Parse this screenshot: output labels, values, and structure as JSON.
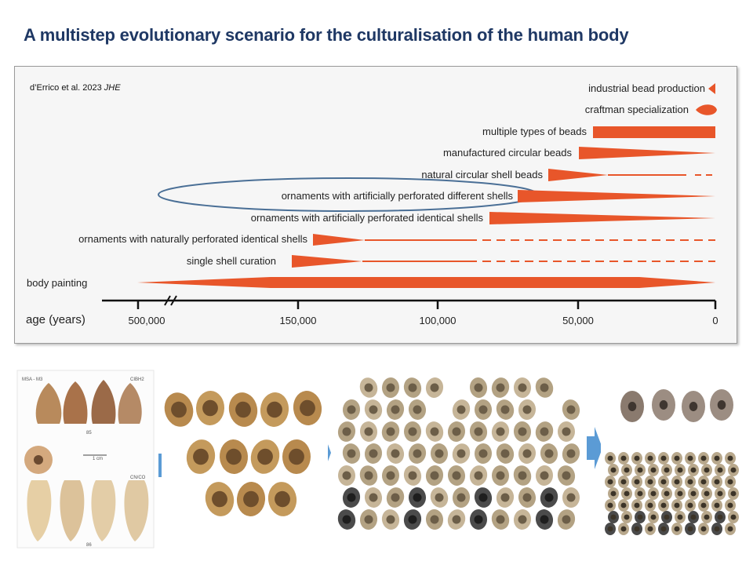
{
  "title": "A multistep evolutionary scenario for the culturalisation of the human body",
  "citation": {
    "authors": "d’Errico et al. 2023",
    "journal": "JHE"
  },
  "rows": [
    {
      "label": "industrial bead production"
    },
    {
      "label": "craftman specialization"
    },
    {
      "label": "multiple types of beads"
    },
    {
      "label": "manufactured circular beads"
    },
    {
      "label": "natural circular shell beads"
    },
    {
      "label": "ornaments with artificially perforated different shells"
    },
    {
      "label": "ornaments with artificially perforated identical shells"
    },
    {
      "label": "ornaments with naturally perforated identical shells"
    },
    {
      "label": "single shell curation"
    },
    {
      "label": "body painting"
    }
  ],
  "axis": {
    "label": "age (years)",
    "ticks": [
      "500,000",
      "150,000",
      "100,000",
      "50,000",
      "0"
    ]
  },
  "colors": {
    "bar": "#e8562a",
    "title": "#1f3864",
    "ellipse": "#4a6f96",
    "arrow": "#5b9bd5"
  },
  "photos": [
    {
      "name": "cone-shells",
      "labels": [
        "MSA - M3",
        "CIBH2",
        "CN/CO",
        "1 cm",
        "85",
        "86"
      ]
    },
    {
      "name": "perforated-shells"
    },
    {
      "name": "many-perforated-shells"
    },
    {
      "name": "small-shell-beads"
    }
  ]
}
